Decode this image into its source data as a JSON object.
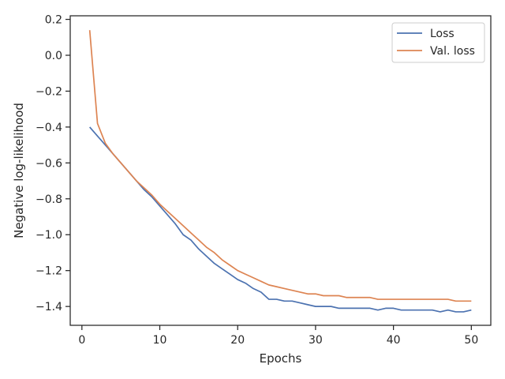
{
  "chart_data": {
    "type": "line",
    "title": "",
    "xlabel": "Epochs",
    "ylabel": "Negative log-likelihood",
    "xlim": [
      -1.5,
      52.5
    ],
    "ylim": [
      -1.505,
      0.22
    ],
    "xticks": [
      0,
      10,
      20,
      30,
      40,
      50
    ],
    "yticks": [
      0.2,
      0.0,
      -0.2,
      -0.4,
      -0.6,
      -0.8,
      -1.0,
      -1.2,
      -1.4
    ],
    "xtick_labels": [
      "0",
      "10",
      "20",
      "30",
      "40",
      "50"
    ],
    "ytick_labels": [
      "0.2",
      "0.0",
      "−0.2",
      "−0.4",
      "−0.6",
      "−0.8",
      "−1.0",
      "−1.2",
      "−1.4"
    ],
    "grid": false,
    "legend_position": "top-right",
    "x": [
      1,
      2,
      3,
      4,
      5,
      6,
      7,
      8,
      9,
      10,
      11,
      12,
      13,
      14,
      15,
      16,
      17,
      18,
      19,
      20,
      21,
      22,
      23,
      24,
      25,
      26,
      27,
      28,
      29,
      30,
      31,
      32,
      33,
      34,
      35,
      36,
      37,
      38,
      39,
      40,
      41,
      42,
      43,
      44,
      45,
      46,
      47,
      48,
      49,
      50
    ],
    "series": [
      {
        "name": "Loss",
        "color": "#4c72b0",
        "values": [
          -0.4,
          -0.45,
          -0.5,
          -0.55,
          -0.6,
          -0.65,
          -0.7,
          -0.75,
          -0.79,
          -0.84,
          -0.89,
          -0.94,
          -1.0,
          -1.03,
          -1.08,
          -1.12,
          -1.16,
          -1.19,
          -1.22,
          -1.25,
          -1.27,
          -1.3,
          -1.32,
          -1.36,
          -1.36,
          -1.37,
          -1.37,
          -1.38,
          -1.39,
          -1.4,
          -1.4,
          -1.4,
          -1.41,
          -1.41,
          -1.41,
          -1.41,
          -1.41,
          -1.42,
          -1.41,
          -1.41,
          -1.42,
          -1.42,
          -1.42,
          -1.42,
          -1.42,
          -1.43,
          -1.42,
          -1.43,
          -1.43,
          -1.42
        ]
      },
      {
        "name": "Val. loss",
        "color": "#dd8452",
        "values": [
          0.14,
          -0.38,
          -0.49,
          -0.55,
          -0.6,
          -0.65,
          -0.7,
          -0.74,
          -0.78,
          -0.83,
          -0.87,
          -0.91,
          -0.95,
          -0.99,
          -1.03,
          -1.07,
          -1.1,
          -1.14,
          -1.17,
          -1.2,
          -1.22,
          -1.24,
          -1.26,
          -1.28,
          -1.29,
          -1.3,
          -1.31,
          -1.32,
          -1.33,
          -1.33,
          -1.34,
          -1.34,
          -1.34,
          -1.35,
          -1.35,
          -1.35,
          -1.35,
          -1.36,
          -1.36,
          -1.36,
          -1.36,
          -1.36,
          -1.36,
          -1.36,
          -1.36,
          -1.36,
          -1.36,
          -1.37,
          -1.37,
          -1.37
        ]
      }
    ]
  }
}
